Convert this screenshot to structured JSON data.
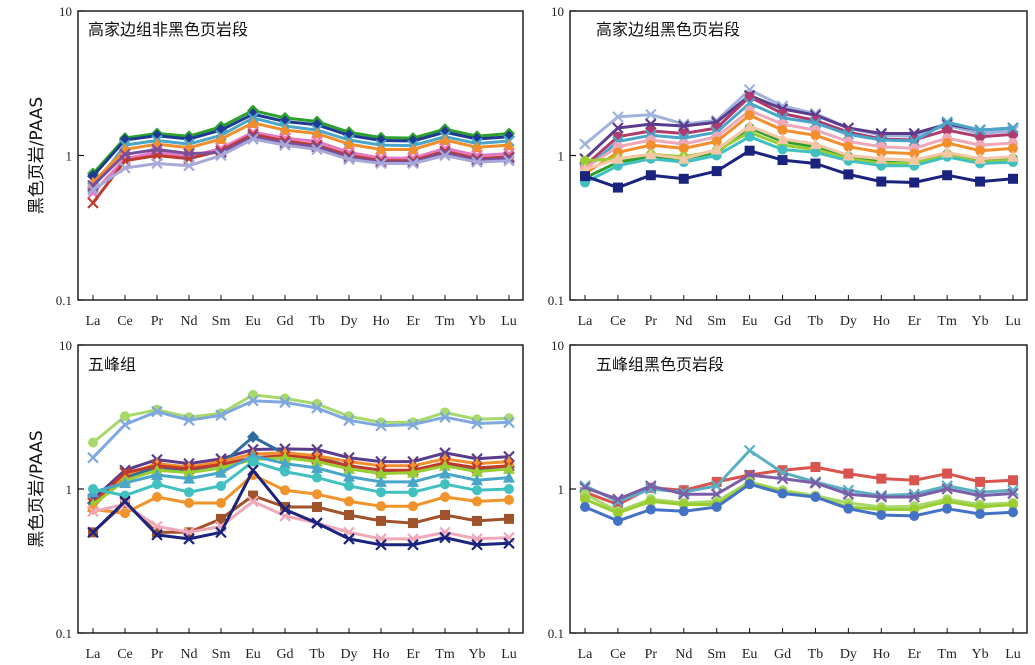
{
  "chart_data": [
    {
      "type": "line",
      "title": "高家边组非黑色页岩段",
      "ylabel": "黑色页岩/PAAS",
      "yscale": "log",
      "ylim": [
        0.1,
        10
      ],
      "yticks": [
        "0.1",
        "1",
        "10"
      ],
      "categories": [
        "La",
        "Ce",
        "Pr",
        "Nd",
        "Sm",
        "Eu",
        "Gd",
        "Tb",
        "Dy",
        "Ho",
        "Er",
        "Tm",
        "Yb",
        "Lu"
      ],
      "series": [
        {
          "color": "#2ca02c",
          "marker": "diamond",
          "values": [
            0.75,
            1.32,
            1.42,
            1.36,
            1.58,
            2.05,
            1.82,
            1.72,
            1.45,
            1.33,
            1.32,
            1.52,
            1.36,
            1.42
          ]
        },
        {
          "color": "#1f3a93",
          "marker": "diamond",
          "values": [
            0.72,
            1.28,
            1.37,
            1.3,
            1.5,
            1.93,
            1.72,
            1.63,
            1.38,
            1.27,
            1.26,
            1.45,
            1.3,
            1.35
          ]
        },
        {
          "color": "#4aa6c8",
          "marker": "cross",
          "values": [
            0.6,
            1.18,
            1.27,
            1.2,
            1.38,
            1.82,
            1.6,
            1.5,
            1.28,
            1.18,
            1.17,
            1.35,
            1.21,
            1.26
          ]
        },
        {
          "color": "#f28e2b",
          "marker": "triangle",
          "values": [
            0.65,
            1.1,
            1.2,
            1.13,
            1.3,
            1.68,
            1.5,
            1.42,
            1.2,
            1.1,
            1.1,
            1.28,
            1.14,
            1.18
          ]
        },
        {
          "color": "#e377c2",
          "marker": "cross",
          "values": [
            0.55,
            0.95,
            1.05,
            0.98,
            1.12,
            1.45,
            1.32,
            1.25,
            1.05,
            0.96,
            0.96,
            1.12,
            1.0,
            1.03
          ]
        },
        {
          "color": "#c0392b",
          "marker": "cross",
          "values": [
            0.47,
            0.92,
            1.0,
            0.95,
            1.08,
            1.4,
            1.26,
            1.18,
            1.0,
            0.92,
            0.92,
            1.07,
            0.95,
            0.98
          ]
        },
        {
          "color": "#7a4f9a",
          "marker": "cross",
          "values": [
            0.62,
            1.02,
            1.1,
            1.03,
            1.05,
            1.35,
            1.22,
            1.15,
            0.97,
            0.9,
            0.9,
            1.04,
            0.93,
            0.96
          ]
        },
        {
          "color": "#a9a9d9",
          "marker": "cross",
          "values": [
            0.58,
            0.82,
            0.88,
            0.85,
            1.0,
            1.3,
            1.18,
            1.1,
            0.94,
            0.88,
            0.88,
            1.0,
            0.9,
            0.92
          ]
        }
      ]
    },
    {
      "type": "line",
      "title": "高家边组黑色页岩段",
      "ylabel": "",
      "yscale": "log",
      "ylim": [
        0.1,
        10
      ],
      "yticks": [
        "0.1",
        "1",
        "10"
      ],
      "categories": [
        "La",
        "Ce",
        "Pr",
        "Nd",
        "Sm",
        "Eu",
        "Gd",
        "Tb",
        "Dy",
        "Ho",
        "Er",
        "Tm",
        "Yb",
        "Lu"
      ],
      "series": [
        {
          "color": "#9fb3dc",
          "marker": "cross",
          "values": [
            1.2,
            1.85,
            1.92,
            1.65,
            1.75,
            2.85,
            2.2,
            1.95,
            1.55,
            1.38,
            1.36,
            1.62,
            1.42,
            1.48
          ]
        },
        {
          "color": "#5a3b8c",
          "marker": "cross",
          "values": [
            0.95,
            1.55,
            1.65,
            1.6,
            1.7,
            2.6,
            2.1,
            1.9,
            1.55,
            1.42,
            1.42,
            1.65,
            1.5,
            1.55
          ]
        },
        {
          "color": "#b03a6b",
          "marker": "circle",
          "values": [
            0.85,
            1.35,
            1.48,
            1.42,
            1.55,
            2.55,
            1.95,
            1.75,
            1.45,
            1.3,
            1.28,
            1.5,
            1.35,
            1.4
          ]
        },
        {
          "color": "#4aa6c8",
          "marker": "cross",
          "values": [
            0.8,
            1.25,
            1.38,
            1.32,
            1.45,
            2.3,
            1.82,
            1.68,
            1.4,
            1.28,
            1.26,
            1.7,
            1.5,
            1.55
          ]
        },
        {
          "color": "#f0a8b8",
          "marker": "circle",
          "values": [
            0.82,
            1.15,
            1.28,
            1.2,
            1.35,
            2.05,
            1.65,
            1.5,
            1.25,
            1.15,
            1.12,
            1.32,
            1.18,
            1.22
          ]
        },
        {
          "color": "#f28e2b",
          "marker": "circle",
          "values": [
            0.75,
            1.05,
            1.18,
            1.12,
            1.25,
            1.9,
            1.5,
            1.38,
            1.15,
            1.05,
            1.03,
            1.22,
            1.08,
            1.12
          ]
        },
        {
          "color": "#2ca02c",
          "marker": "circle",
          "values": [
            0.7,
            0.9,
            0.98,
            0.95,
            1.05,
            1.55,
            1.25,
            1.15,
            0.98,
            0.9,
            0.88,
            1.02,
            0.92,
            0.95
          ]
        },
        {
          "color": "#9acd32",
          "marker": "circle",
          "values": [
            0.92,
            0.95,
            1.02,
            0.98,
            1.08,
            1.45,
            1.18,
            1.1,
            0.95,
            0.88,
            0.88,
            1.0,
            0.9,
            0.93
          ]
        },
        {
          "color": "#40c0c0",
          "marker": "circle",
          "values": [
            0.65,
            0.85,
            0.95,
            0.9,
            1.0,
            1.35,
            1.1,
            1.05,
            0.92,
            0.85,
            0.85,
            0.98,
            0.88,
            0.9
          ]
        },
        {
          "color": "#f5c6a5",
          "marker": "triangle",
          "values": [
            0.8,
            0.95,
            1.02,
            0.95,
            1.1,
            1.6,
            1.3,
            1.2,
            1.0,
            0.95,
            0.93,
            1.05,
            0.95,
            0.98
          ]
        },
        {
          "color": "#1a237e",
          "marker": "square",
          "values": [
            0.72,
            0.6,
            0.73,
            0.69,
            0.78,
            1.08,
            0.93,
            0.88,
            0.74,
            0.66,
            0.65,
            0.73,
            0.66,
            0.69
          ]
        }
      ]
    },
    {
      "type": "line",
      "title": "五峰组",
      "ylabel": "黑色页岩/PAAS",
      "yscale": "log",
      "ylim": [
        0.1,
        10
      ],
      "yticks": [
        "0.1",
        "1",
        "10"
      ],
      "categories": [
        "La",
        "Ce",
        "Pr",
        "Nd",
        "Sm",
        "Eu",
        "Gd",
        "Tb",
        "Dy",
        "Ho",
        "Er",
        "Tm",
        "Yb",
        "Lu"
      ],
      "series": [
        {
          "color": "#a6d96a",
          "marker": "circle",
          "values": [
            2.1,
            3.2,
            3.55,
            3.15,
            3.35,
            4.5,
            4.25,
            3.9,
            3.2,
            2.9,
            2.9,
            3.4,
            3.05,
            3.1
          ]
        },
        {
          "color": "#7fa7e0",
          "marker": "cross",
          "values": [
            1.65,
            2.8,
            3.45,
            3.0,
            3.25,
            4.1,
            4.0,
            3.65,
            3.0,
            2.75,
            2.8,
            3.15,
            2.85,
            2.9
          ]
        },
        {
          "color": "#5a3b8c",
          "marker": "cross",
          "values": [
            0.85,
            1.35,
            1.6,
            1.5,
            1.62,
            1.88,
            1.9,
            1.88,
            1.65,
            1.55,
            1.55,
            1.78,
            1.62,
            1.68
          ]
        },
        {
          "color": "#2e6b9e",
          "marker": "diamond",
          "values": [
            0.8,
            1.2,
            1.42,
            1.35,
            1.48,
            2.3,
            1.75,
            1.65,
            1.45,
            1.35,
            1.32,
            1.5,
            1.38,
            1.42
          ]
        },
        {
          "color": "#f28e2b",
          "marker": "triangle",
          "values": [
            0.75,
            1.25,
            1.5,
            1.42,
            1.55,
            1.75,
            1.78,
            1.7,
            1.55,
            1.45,
            1.45,
            1.62,
            1.5,
            1.55
          ]
        },
        {
          "color": "#c0392b",
          "marker": "cross",
          "values": [
            0.8,
            1.3,
            1.45,
            1.38,
            1.48,
            1.65,
            1.7,
            1.62,
            1.45,
            1.35,
            1.35,
            1.52,
            1.4,
            1.45
          ]
        },
        {
          "color": "#9acd32",
          "marker": "triangle",
          "values": [
            0.78,
            1.15,
            1.35,
            1.3,
            1.4,
            1.6,
            1.65,
            1.55,
            1.38,
            1.28,
            1.3,
            1.45,
            1.32,
            1.38
          ]
        },
        {
          "color": "#4aa6c8",
          "marker": "triangle",
          "values": [
            0.95,
            1.1,
            1.25,
            1.18,
            1.3,
            1.7,
            1.5,
            1.4,
            1.22,
            1.12,
            1.12,
            1.28,
            1.15,
            1.2
          ]
        },
        {
          "color": "#40c0c0",
          "marker": "circle",
          "values": [
            1.0,
            0.9,
            1.08,
            0.95,
            1.05,
            1.55,
            1.32,
            1.2,
            1.05,
            0.95,
            0.95,
            1.08,
            0.98,
            1.0
          ]
        },
        {
          "color": "#f0932b",
          "marker": "circle",
          "values": [
            0.72,
            0.68,
            0.88,
            0.8,
            0.8,
            1.25,
            0.98,
            0.92,
            0.82,
            0.76,
            0.76,
            0.88,
            0.82,
            0.84
          ]
        },
        {
          "color": "#a0522d",
          "marker": "square",
          "values": [
            0.5,
            0.8,
            0.5,
            0.5,
            0.62,
            0.9,
            0.75,
            0.75,
            0.66,
            0.6,
            0.58,
            0.66,
            0.6,
            0.62
          ]
        },
        {
          "color": "#f0a8b8",
          "marker": "cross",
          "values": [
            0.7,
            0.78,
            0.55,
            0.5,
            0.55,
            0.82,
            0.65,
            0.58,
            0.5,
            0.45,
            0.45,
            0.5,
            0.45,
            0.46
          ]
        },
        {
          "color": "#1a237e",
          "marker": "cross",
          "values": [
            0.5,
            0.82,
            0.48,
            0.45,
            0.5,
            1.35,
            0.72,
            0.58,
            0.45,
            0.41,
            0.41,
            0.46,
            0.41,
            0.42
          ]
        }
      ]
    },
    {
      "type": "line",
      "title": "五峰组黑色页岩段",
      "ylabel": "",
      "yscale": "log",
      "ylim": [
        0.1,
        10
      ],
      "yticks": [
        "0.1",
        "1",
        "10"
      ],
      "categories": [
        "La",
        "Ce",
        "Pr",
        "Nd",
        "Sm",
        "Eu",
        "Gd",
        "Tb",
        "Dy",
        "Ho",
        "Er",
        "Tm",
        "Yb",
        "Lu"
      ],
      "series": [
        {
          "color": "#d9534f",
          "marker": "square",
          "values": [
            0.95,
            0.78,
            1.02,
            0.98,
            1.12,
            1.25,
            1.35,
            1.42,
            1.28,
            1.18,
            1.15,
            1.28,
            1.12,
            1.15
          ]
        },
        {
          "color": "#5ab0c2",
          "marker": "cross",
          "values": [
            1.05,
            0.82,
            1.0,
            0.95,
            1.05,
            1.85,
            1.3,
            1.12,
            0.98,
            0.9,
            0.92,
            1.05,
            0.95,
            0.98
          ]
        },
        {
          "color": "#7a5fa8",
          "marker": "cross",
          "values": [
            1.02,
            0.85,
            1.05,
            0.92,
            0.92,
            1.25,
            1.18,
            1.1,
            0.92,
            0.88,
            0.88,
            1.0,
            0.9,
            0.93
          ]
        },
        {
          "color": "#a6d96a",
          "marker": "circle",
          "values": [
            0.92,
            0.7,
            0.85,
            0.8,
            0.82,
            1.12,
            0.98,
            0.9,
            0.8,
            0.75,
            0.76,
            0.85,
            0.78,
            0.8
          ]
        },
        {
          "color": "#9acd32",
          "marker": "circle",
          "values": [
            0.85,
            0.68,
            0.82,
            0.78,
            0.78,
            1.1,
            0.95,
            0.88,
            0.75,
            0.72,
            0.72,
            0.82,
            0.75,
            0.78
          ]
        },
        {
          "color": "#4472c4",
          "marker": "circle",
          "values": [
            0.75,
            0.6,
            0.72,
            0.7,
            0.75,
            1.08,
            0.93,
            0.88,
            0.73,
            0.66,
            0.65,
            0.73,
            0.67,
            0.69
          ]
        }
      ]
    }
  ]
}
